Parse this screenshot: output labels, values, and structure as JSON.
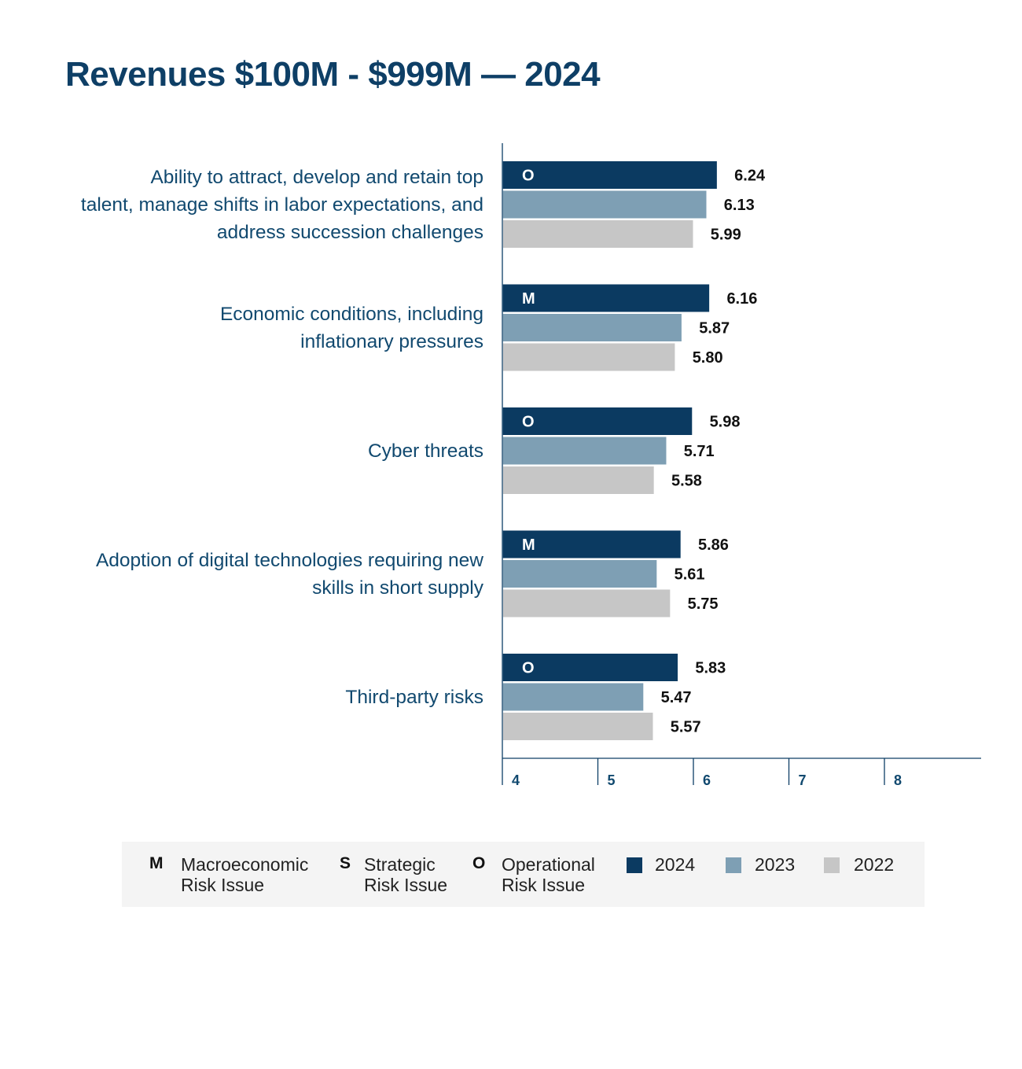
{
  "title": "Revenues $100M - $999M — 2024",
  "chart_data": {
    "type": "bar",
    "orientation": "horizontal",
    "categories": [
      "Ability to attract, develop and retain top talent, manage shifts in labor expectations, and address succession challenges",
      "Economic conditions, including inflationary pressures",
      "Cyber threats",
      "Adoption of digital technologies requiring new skills in short supply",
      "Third-party risks"
    ],
    "category_lines": [
      [
        "Ability to attract, develop and retain top",
        "talent, manage shifts in labor expectations, and",
        "address succession challenges"
      ],
      [
        "Economic conditions, including",
        "inflationary pressures"
      ],
      [
        "Cyber threats"
      ],
      [
        "Adoption of digital technologies requiring new",
        "skills in short supply"
      ],
      [
        "Third-party risks"
      ]
    ],
    "risk_codes": [
      "O",
      "M",
      "O",
      "M",
      "O"
    ],
    "series": [
      {
        "name": "2024",
        "color": "#0b3a61",
        "values": [
          6.24,
          6.16,
          5.98,
          5.86,
          5.83
        ],
        "labels": [
          "6.24",
          "6.16",
          "5.98",
          "5.86",
          "5.83"
        ]
      },
      {
        "name": "2023",
        "color": "#7e9fb4",
        "values": [
          6.13,
          5.87,
          5.71,
          5.61,
          5.47
        ],
        "labels": [
          "6.13",
          "5.87",
          "5.71",
          "5.61",
          "5.47"
        ]
      },
      {
        "name": "2022",
        "color": "#c6c6c6",
        "values": [
          5.99,
          5.8,
          5.58,
          5.75,
          5.57
        ],
        "labels": [
          "5.99",
          "5.80",
          "5.58",
          "5.75",
          "5.57"
        ]
      }
    ],
    "xlim": [
      4,
      9
    ],
    "xticks": [
      4,
      5,
      6,
      7,
      8
    ],
    "xtick_labels": [
      "4",
      "5",
      "6",
      "7",
      "8"
    ],
    "grid": false,
    "legend_position": "bottom"
  },
  "legend": {
    "risk_types": [
      {
        "code": "M",
        "line1": "Macroeconomic",
        "line2": "Risk Issue"
      },
      {
        "code": "S",
        "line1": "Strategic",
        "line2": "Risk Issue"
      },
      {
        "code": "O",
        "line1": "Operational",
        "line2": "Risk Issue"
      }
    ],
    "years": [
      {
        "label": "2024",
        "color": "#0b3a61"
      },
      {
        "label": "2023",
        "color": "#7e9fb4"
      },
      {
        "label": "2022",
        "color": "#c6c6c6"
      }
    ]
  }
}
